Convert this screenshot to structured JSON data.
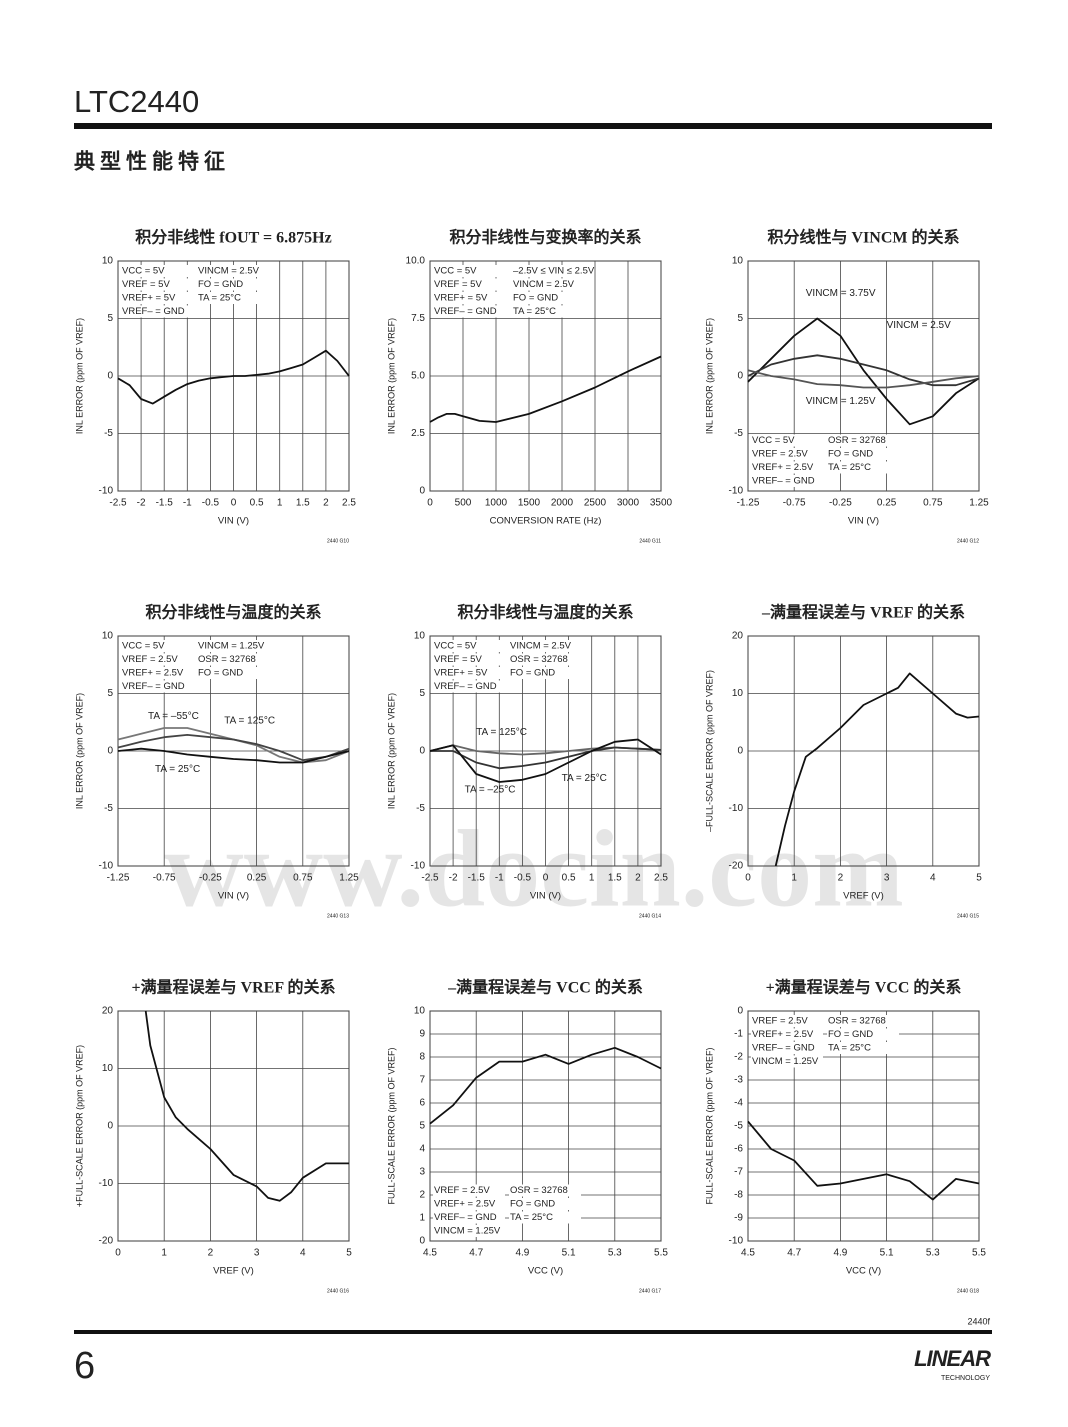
{
  "header": {
    "part": "LTC2440",
    "section": "典型性能特征"
  },
  "watermark": "www.docin.com",
  "footer": {
    "doc_code": "2440f",
    "page": "6",
    "logo": "LINEAR",
    "logo_sub": "TECHNOLOGY"
  },
  "chart_data": [
    {
      "type": "line",
      "title": "积分非线性 fOUT = 6.875Hz",
      "xlabel": "VIN (V)",
      "ylabel": "INL ERROR (ppm OF VREF)",
      "code": "2440 G10",
      "grid": true,
      "xlim": [
        -2.5,
        2.5
      ],
      "xticks": [
        -2.5,
        -2,
        -1.5,
        -1,
        -0.5,
        0,
        0.5,
        1,
        1.5,
        2,
        2.5
      ],
      "ylim": [
        -10,
        10
      ],
      "yticks": [
        -10,
        -5,
        0,
        5,
        10
      ],
      "notes_corner": "upper left",
      "notes": [
        [
          "VCC = 5V",
          "VREF = 5V",
          "VREF+ = 5V",
          "VREF– = GND"
        ],
        [
          "VINCM = 2.5V",
          "FO = GND",
          "TA = 25°C"
        ]
      ],
      "series": [
        {
          "color": "#111111",
          "x": [
            -2.5,
            -2.25,
            -2,
            -1.75,
            -1.5,
            -1.25,
            -1,
            -0.75,
            -0.5,
            -0.25,
            0,
            0.25,
            0.5,
            0.75,
            1,
            1.25,
            1.5,
            1.75,
            2,
            2.25,
            2.5
          ],
          "values": [
            -0.2,
            -0.8,
            -2.0,
            -2.4,
            -1.8,
            -1.2,
            -0.7,
            -0.4,
            -0.2,
            -0.1,
            0,
            0,
            0.1,
            0.2,
            0.4,
            0.7,
            1.0,
            1.6,
            2.2,
            1.3,
            0.0
          ]
        }
      ]
    },
    {
      "type": "line",
      "title": "积分非线性与变换率的关系",
      "xlabel": "CONVERSION RATE (Hz)",
      "ylabel": "INL ERROR (ppm OF VREF)",
      "code": "2440 G11",
      "grid": true,
      "xlim": [
        0,
        3500
      ],
      "xticks": [
        0,
        500,
        1000,
        1500,
        2000,
        2500,
        3000,
        3500
      ],
      "ylim": [
        0,
        10
      ],
      "yticks": [
        0,
        2.5,
        {
          "value": 5,
          "label": "5.0"
        },
        7.5,
        {
          "value": 10,
          "label": "10.0"
        }
      ],
      "notes_corner": "upper left",
      "notes": [
        [
          "VCC = 5V",
          "VREF = 5V",
          "VREF+ = 5V",
          "VREF– = GND"
        ],
        [
          "–2.5V ≤ VIN ≤ 2.5V",
          "VINCM = 2.5V",
          "FO = GND",
          "TA = 25°C"
        ]
      ],
      "series": [
        {
          "color": "#111111",
          "x": [
            0,
            125,
            250,
            375,
            500,
            750,
            1000,
            1500,
            2000,
            2500,
            3000,
            3500
          ],
          "values": [
            3.0,
            3.2,
            3.35,
            3.35,
            3.25,
            3.05,
            3.0,
            3.35,
            3.9,
            4.5,
            5.2,
            5.85
          ]
        }
      ]
    },
    {
      "type": "line",
      "title": "积分线性与 VINCM 的关系",
      "xlabel": "VIN (V)",
      "ylabel": "INL ERROR (ppm OF VREF)",
      "code": "2440 G12",
      "grid": true,
      "xlim": [
        -1.25,
        1.25
      ],
      "xticks": [
        -1.25,
        -0.75,
        -0.25,
        0.25,
        0.75,
        1.25
      ],
      "ylim": [
        -10,
        10
      ],
      "yticks": [
        -10,
        -5,
        0,
        5,
        10
      ],
      "notes_corner": "lower left",
      "notes": [
        [
          "VCC = 5V",
          "VREF = 2.5V",
          "VREF+ = 2.5V",
          "VREF– = GND"
        ],
        [
          "OSR = 32768",
          "FO = GND",
          "TA = 25°C"
        ]
      ],
      "series": [
        {
          "name": "VINCM = 3.75V",
          "color": "#111111",
          "x": [
            -1.25,
            -1,
            -0.75,
            -0.5,
            -0.25,
            0,
            0.25,
            0.5,
            0.75,
            1,
            1.25
          ],
          "values": [
            -0.5,
            1.5,
            3.5,
            5,
            3.5,
            0.5,
            -2,
            -4.2,
            -3.5,
            -1.5,
            -0.2
          ]
        },
        {
          "name": "VINCM = 2.5V",
          "color": "#333333",
          "x": [
            -1.25,
            -1,
            -0.75,
            -0.5,
            -0.25,
            0,
            0.25,
            0.5,
            0.75,
            1,
            1.25
          ],
          "values": [
            0,
            1,
            1.5,
            1.8,
            1.5,
            1,
            0.5,
            -0.3,
            -0.8,
            -0.8,
            -0.2
          ]
        },
        {
          "name": "VINCM = 1.25V",
          "color": "#555555",
          "x": [
            -1.25,
            -1,
            -0.75,
            -0.5,
            -0.25,
            0,
            0.25,
            0.5,
            0.75,
            1,
            1.25
          ],
          "values": [
            0.5,
            0,
            -0.3,
            -0.7,
            -0.8,
            -1,
            -1,
            -0.8,
            -0.5,
            -0.2,
            0
          ]
        }
      ]
    },
    {
      "type": "line",
      "title": "积分非线性与温度的关系",
      "xlabel": "VIN (V)",
      "ylabel": "INL ERROR (ppm OF VREF)",
      "code": "2440 G13",
      "grid": true,
      "xlim": [
        -1.25,
        1.25
      ],
      "xticks": [
        -1.25,
        -0.75,
        -0.25,
        0.25,
        0.75,
        1.25
      ],
      "ylim": [
        -10,
        10
      ],
      "yticks": [
        -10,
        -5,
        0,
        5,
        10
      ],
      "notes_corner": "upper left",
      "notes": [
        [
          "VCC = 5V",
          "VREF = 2.5V",
          "VREF+ = 2.5V",
          "VREF– = GND"
        ],
        [
          "VINCM = 1.25V",
          "OSR = 32768",
          "FO = GND"
        ]
      ],
      "series": [
        {
          "name": "TA = –55°C",
          "color": "#777777",
          "x": [
            -1.25,
            -1,
            -0.75,
            -0.5,
            -0.25,
            0,
            0.25,
            0.5,
            0.75,
            1,
            1.25
          ],
          "values": [
            1,
            1.5,
            2,
            2,
            1.5,
            1,
            0.5,
            -0.5,
            -1,
            -0.8,
            0
          ]
        },
        {
          "name": "TA = 125°C",
          "color": "#444444",
          "x": [
            -1.25,
            -1,
            -0.75,
            -0.5,
            -0.25,
            0,
            0.25,
            0.5,
            0.75,
            1,
            1.25
          ],
          "values": [
            0.3,
            0.8,
            1.2,
            1.4,
            1.2,
            1,
            0.6,
            0,
            -0.8,
            -0.5,
            0.2
          ]
        },
        {
          "name": "TA = 25°C",
          "color": "#111111",
          "x": [
            -1.25,
            -1,
            -0.75,
            -0.5,
            -0.25,
            0,
            0.25,
            0.5,
            0.75,
            1,
            1.25
          ],
          "values": [
            0,
            0.2,
            0,
            -0.3,
            -0.5,
            -0.7,
            -0.8,
            -1,
            -1,
            -0.5,
            0
          ]
        }
      ]
    },
    {
      "type": "line",
      "title": "积分非线性与温度的关系",
      "xlabel": "VIN (V)",
      "ylabel": "INL ERROR (ppm OF VREF)",
      "code": "2440 G14",
      "grid": true,
      "xlim": [
        -2.5,
        2.5
      ],
      "xticks": [
        -2.5,
        -2,
        -1.5,
        -1,
        -0.5,
        0,
        0.5,
        1,
        1.5,
        2,
        2.5
      ],
      "ylim": [
        -10,
        10
      ],
      "yticks": [
        -10,
        -5,
        0,
        5,
        10
      ],
      "notes_corner": "upper left",
      "notes": [
        [
          "VCC = 5V",
          "VREF = 5V",
          "VREF+ = 5V",
          "VREF– = GND"
        ],
        [
          "VINCM = 2.5V",
          "OSR = 32768",
          "FO = GND"
        ]
      ],
      "series": [
        {
          "name": "TA = 125°C",
          "color": "#666666",
          "x": [
            -2.5,
            -2,
            -1.5,
            -1,
            -0.5,
            0,
            0.5,
            1,
            1.5,
            2,
            2.5
          ],
          "values": [
            0,
            0.5,
            0,
            -0.2,
            -0.3,
            -0.2,
            0,
            0.2,
            0.3,
            0.2,
            0.1
          ]
        },
        {
          "name": "TA = 25°C",
          "color": "#333333",
          "x": [
            -2.5,
            -2,
            -1.5,
            -1,
            -0.5,
            0,
            0.5,
            1,
            1.5,
            2,
            2.5
          ],
          "values": [
            0,
            0,
            -1,
            -1.5,
            -1.3,
            -1,
            -0.5,
            0,
            0.3,
            0.2,
            0.1
          ]
        },
        {
          "name": "TA = –25°C",
          "color": "#111111",
          "x": [
            -2.5,
            -2,
            -1.5,
            -1,
            -0.5,
            0,
            0.5,
            1,
            1.5,
            2,
            2.5
          ],
          "values": [
            0,
            0.5,
            -2,
            -2.7,
            -2.5,
            -2,
            -1,
            0,
            0.8,
            1,
            -0.3
          ]
        }
      ]
    },
    {
      "type": "line",
      "title": "–满量程误差与 VREF 的关系",
      "xlabel": "VREF (V)",
      "ylabel": "–FULL-SCALE ERROR (ppm OF VREF)",
      "code": "2440 G15",
      "grid": true,
      "xlim": [
        0,
        5
      ],
      "xticks": [
        0,
        1,
        2,
        3,
        4,
        5
      ],
      "ylim": [
        -20,
        20
      ],
      "yticks": [
        -20,
        -10,
        0,
        10,
        20
      ],
      "series": [
        {
          "color": "#111111",
          "x": [
            0.6,
            0.8,
            1,
            1.25,
            1.5,
            2,
            2.5,
            3,
            3.25,
            3.5,
            4,
            4.5,
            4.75,
            5
          ],
          "values": [
            -20,
            -13,
            -7,
            -1,
            0.5,
            4,
            8,
            10,
            11,
            13.5,
            10,
            6.5,
            5.8,
            6
          ]
        }
      ]
    },
    {
      "type": "line",
      "title": "+满量程误差与 VREF 的关系",
      "xlabel": "VREF (V)",
      "ylabel": "+FULL-SCALE ERROR (ppm OF VREF)",
      "code": "2440 G16",
      "grid": true,
      "xlim": [
        0,
        5
      ],
      "xticks": [
        0,
        1,
        2,
        3,
        4,
        5
      ],
      "ylim": [
        -20,
        20
      ],
      "yticks": [
        -20,
        -10,
        0,
        10,
        20
      ],
      "series": [
        {
          "color": "#111111",
          "x": [
            0.6,
            0.7,
            1,
            1.25,
            1.5,
            2,
            2.5,
            3,
            3.25,
            3.5,
            3.75,
            4,
            4.5,
            5
          ],
          "values": [
            20,
            14,
            5,
            1.5,
            -0.5,
            -4,
            -8.5,
            -10.5,
            -12.5,
            -13,
            -11.5,
            -9,
            -6.5,
            -6.5
          ]
        }
      ]
    },
    {
      "type": "line",
      "title": "–满量程误差与 VCC 的关系",
      "xlabel": "VCC (V)",
      "ylabel": "FULL-SCALE ERROR (ppm OF VREF)",
      "code": "2440 G17",
      "grid": true,
      "xlim": [
        4.5,
        5.5
      ],
      "xticks": [
        4.5,
        4.7,
        4.9,
        5.1,
        5.3,
        5.5
      ],
      "ylim": [
        0,
        10
      ],
      "yticks": [
        0,
        1,
        2,
        3,
        4,
        5,
        6,
        7,
        8,
        9,
        10
      ],
      "notes_corner": "lower left",
      "notes": [
        [
          "VREF = 2.5V",
          "VREF+ = 2.5V",
          "VREF– = GND",
          "VINCM = 1.25V"
        ],
        [
          "OSR = 32768",
          "FO = GND",
          "TA = 25°C"
        ]
      ],
      "series": [
        {
          "color": "#111111",
          "x": [
            4.5,
            4.6,
            4.7,
            4.8,
            4.9,
            5.0,
            5.1,
            5.2,
            5.3,
            5.4,
            5.5
          ],
          "values": [
            5.1,
            5.9,
            7.1,
            7.8,
            7.8,
            8.1,
            7.7,
            8.1,
            8.4,
            8.0,
            7.5
          ]
        }
      ]
    },
    {
      "type": "line",
      "title": "+满量程误差与 VCC 的关系",
      "xlabel": "VCC (V)",
      "ylabel": "FULL-SCALE ERROR (ppm OF VREF)",
      "code": "2440 G18",
      "grid": true,
      "xlim": [
        4.5,
        5.5
      ],
      "xticks": [
        4.5,
        4.7,
        4.9,
        5.1,
        5.3,
        5.5
      ],
      "ylim": [
        -10,
        0
      ],
      "yticks": [
        -10,
        -9,
        -8,
        -7,
        -6,
        -5,
        -4,
        -3,
        -2,
        -1,
        0
      ],
      "notes_corner": "upper left",
      "notes": [
        [
          "VREF = 2.5V",
          "VREF+ = 2.5V",
          "VREF– = GND",
          "VINCM = 1.25V"
        ],
        [
          "OSR = 32768",
          "FO = GND",
          "TA = 25°C"
        ]
      ],
      "series": [
        {
          "color": "#111111",
          "x": [
            4.5,
            4.6,
            4.7,
            4.8,
            4.9,
            5.0,
            5.1,
            5.2,
            5.3,
            5.4,
            5.5
          ],
          "values": [
            -4.8,
            -6,
            -6.5,
            -7.6,
            -7.5,
            -7.3,
            -7.1,
            -7.4,
            -8.2,
            -7.3,
            -7.5
          ]
        }
      ]
    }
  ]
}
